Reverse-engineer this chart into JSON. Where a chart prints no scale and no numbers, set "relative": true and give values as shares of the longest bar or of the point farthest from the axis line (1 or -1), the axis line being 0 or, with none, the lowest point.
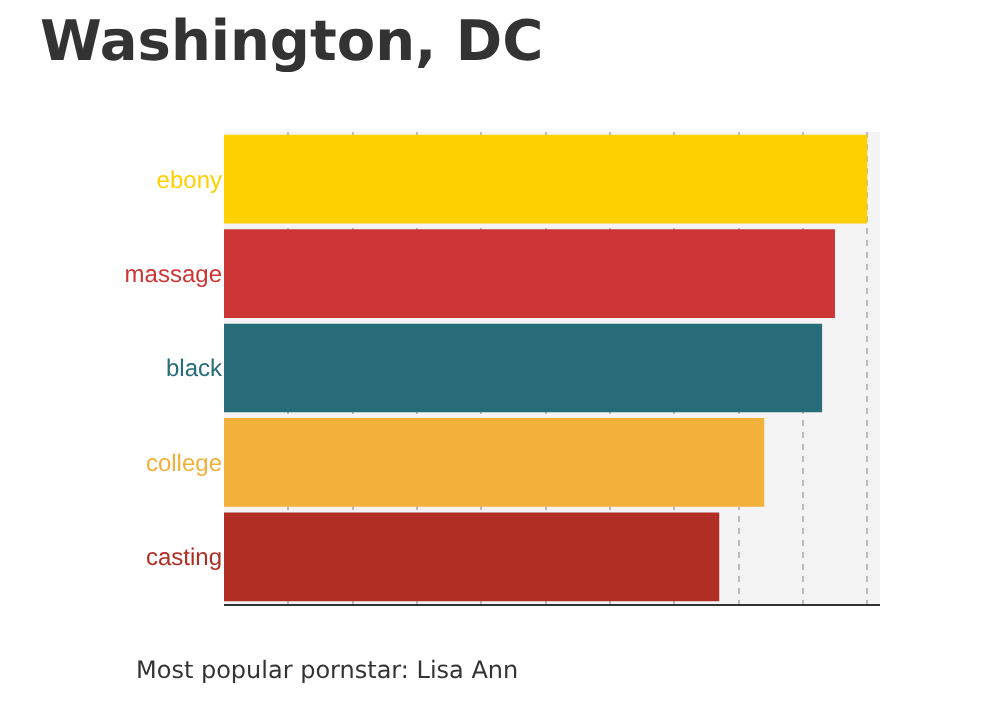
{
  "chart_data": {
    "type": "bar",
    "orientation": "horizontal",
    "relative": true,
    "title": "Washington, DC",
    "categories": [
      "ebony",
      "massage",
      "black",
      "college",
      "casting"
    ],
    "values": [
      1,
      0.95,
      0.93,
      0.84,
      0.77
    ],
    "colors": [
      "#ffd000",
      "#cc3636",
      "#286c7a",
      "#f2b13a",
      "#b02e24"
    ],
    "grid": "x",
    "annotations": [
      "Most popular pornstar: Lisa Ann"
    ]
  }
}
